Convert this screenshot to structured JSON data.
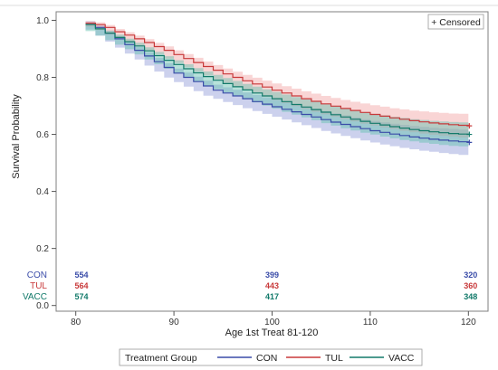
{
  "chart_data": {
    "type": "line",
    "subtype": "kaplan-meier survival curves with confidence bands",
    "xlabel": "Age 1st Treat 81-120",
    "ylabel": "Survival Probability",
    "xlim": [
      78,
      122
    ],
    "ylim": [
      -0.02,
      1.03
    ],
    "x_ticks": [
      80,
      90,
      100,
      110,
      120
    ],
    "y_ticks": [
      0.0,
      0.2,
      0.4,
      0.6,
      0.8,
      1.0
    ],
    "y_tick_labels": [
      "0.0",
      "0.2",
      "0.4",
      "0.6",
      "0.8",
      "1.0"
    ],
    "grid": false,
    "censor_legend": "+ Censored",
    "legend": {
      "title": "Treatment Group",
      "placement": "bottom",
      "entries": [
        "CON",
        "TUL",
        "VACC"
      ]
    },
    "series": [
      {
        "name": "CON",
        "color": "#3a4ca8",
        "band_color": "#8f99d6",
        "points": [
          [
            81,
            0.99
          ],
          [
            82,
            0.975
          ],
          [
            83,
            0.955
          ],
          [
            84,
            0.935
          ],
          [
            85,
            0.915
          ],
          [
            86,
            0.895
          ],
          [
            87,
            0.875
          ],
          [
            88,
            0.855
          ],
          [
            89,
            0.835
          ],
          [
            90,
            0.815
          ],
          [
            91,
            0.8
          ],
          [
            92,
            0.785
          ],
          [
            93,
            0.77
          ],
          [
            94,
            0.755
          ],
          [
            95,
            0.745
          ],
          [
            96,
            0.735
          ],
          [
            97,
            0.725
          ],
          [
            98,
            0.715
          ],
          [
            99,
            0.706
          ],
          [
            100,
            0.697
          ],
          [
            101,
            0.688
          ],
          [
            102,
            0.679
          ],
          [
            103,
            0.67
          ],
          [
            104,
            0.661
          ],
          [
            105,
            0.652
          ],
          [
            106,
            0.643
          ],
          [
            107,
            0.635
          ],
          [
            108,
            0.627
          ],
          [
            109,
            0.62
          ],
          [
            110,
            0.613
          ],
          [
            111,
            0.607
          ],
          [
            112,
            0.601
          ],
          [
            113,
            0.596
          ],
          [
            114,
            0.591
          ],
          [
            115,
            0.587
          ],
          [
            116,
            0.583
          ],
          [
            117,
            0.58
          ],
          [
            118,
            0.577
          ],
          [
            119,
            0.574
          ],
          [
            120,
            0.572
          ]
        ],
        "ci_halfwidth": 0.038,
        "at_risk": [
          554,
          399,
          320
        ]
      },
      {
        "name": "TUL",
        "color": "#c8393a",
        "band_color": "#f2a2a2",
        "points": [
          [
            81,
            0.99
          ],
          [
            82,
            0.985
          ],
          [
            83,
            0.975
          ],
          [
            84,
            0.96
          ],
          [
            85,
            0.948
          ],
          [
            86,
            0.935
          ],
          [
            87,
            0.922
          ],
          [
            88,
            0.908
          ],
          [
            89,
            0.895
          ],
          [
            90,
            0.88
          ],
          [
            91,
            0.866
          ],
          [
            92,
            0.852
          ],
          [
            93,
            0.838
          ],
          [
            94,
            0.825
          ],
          [
            95,
            0.812
          ],
          [
            96,
            0.8
          ],
          [
            97,
            0.788
          ],
          [
            98,
            0.777
          ],
          [
            99,
            0.766
          ],
          [
            100,
            0.755
          ],
          [
            101,
            0.745
          ],
          [
            102,
            0.735
          ],
          [
            103,
            0.725
          ],
          [
            104,
            0.716
          ],
          [
            105,
            0.707
          ],
          [
            106,
            0.699
          ],
          [
            107,
            0.691
          ],
          [
            108,
            0.684
          ],
          [
            109,
            0.677
          ],
          [
            110,
            0.67
          ],
          [
            111,
            0.664
          ],
          [
            112,
            0.658
          ],
          [
            113,
            0.653
          ],
          [
            114,
            0.648
          ],
          [
            115,
            0.644
          ],
          [
            116,
            0.64
          ],
          [
            117,
            0.637
          ],
          [
            118,
            0.634
          ],
          [
            119,
            0.632
          ],
          [
            120,
            0.63
          ]
        ],
        "ci_halfwidth": 0.035,
        "at_risk": [
          564,
          443,
          360
        ]
      },
      {
        "name": "VACC",
        "color": "#127a6a",
        "band_color": "#5fbfae",
        "points": [
          [
            81,
            0.985
          ],
          [
            82,
            0.97
          ],
          [
            83,
            0.955
          ],
          [
            84,
            0.94
          ],
          [
            85,
            0.925
          ],
          [
            86,
            0.91
          ],
          [
            87,
            0.893
          ],
          [
            88,
            0.876
          ],
          [
            89,
            0.86
          ],
          [
            90,
            0.845
          ],
          [
            91,
            0.83
          ],
          [
            92,
            0.816
          ],
          [
            93,
            0.803
          ],
          [
            94,
            0.79
          ],
          [
            95,
            0.778
          ],
          [
            96,
            0.767
          ],
          [
            97,
            0.756
          ],
          [
            98,
            0.745
          ],
          [
            99,
            0.735
          ],
          [
            100,
            0.725
          ],
          [
            101,
            0.715
          ],
          [
            102,
            0.705
          ],
          [
            103,
            0.696
          ],
          [
            104,
            0.687
          ],
          [
            105,
            0.678
          ],
          [
            106,
            0.669
          ],
          [
            107,
            0.661
          ],
          [
            108,
            0.653
          ],
          [
            109,
            0.646
          ],
          [
            110,
            0.639
          ],
          [
            111,
            0.633
          ],
          [
            112,
            0.627
          ],
          [
            113,
            0.622
          ],
          [
            114,
            0.617
          ],
          [
            115,
            0.613
          ],
          [
            116,
            0.609
          ],
          [
            117,
            0.606
          ],
          [
            118,
            0.603
          ],
          [
            119,
            0.601
          ],
          [
            120,
            0.6
          ]
        ],
        "ci_halfwidth": 0.036,
        "at_risk": [
          574,
          417,
          348
        ]
      }
    ],
    "at_risk_times": [
      81,
      100,
      120
    ]
  }
}
